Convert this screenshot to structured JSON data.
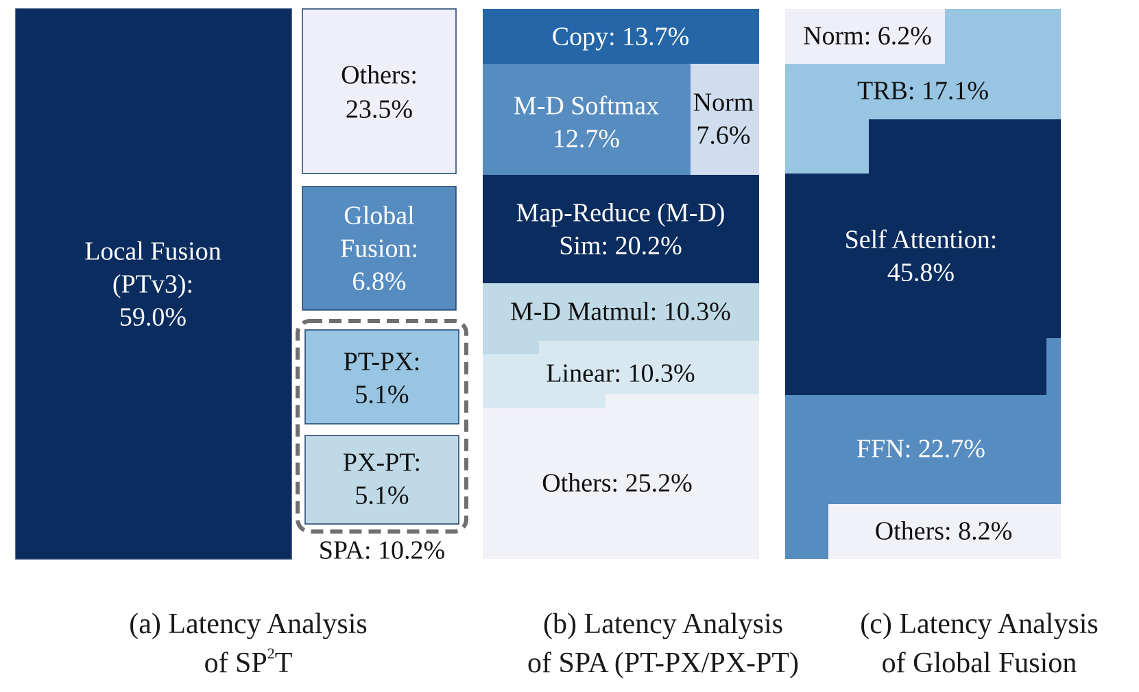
{
  "colors": {
    "c_darkest": "#0b2c5e",
    "c_dark": "#2466a8",
    "c_mid": "#568cc0",
    "c_light": "#98c5e2",
    "c_lighter": "#bfdae6",
    "c_pale": "#d7e8f1",
    "c_paler": "#cfddef",
    "c_palest": "#eeeff8",
    "c_grey": "#f1f2f7",
    "text_light": "#ffffff",
    "text_dark": "#111111",
    "border": "#6f6f6f"
  },
  "chart_data": [
    {
      "type": "treemap",
      "panel": "a",
      "caption": [
        "(a) Latency Analysis",
        "of SP",
        "2",
        "T"
      ],
      "segments": [
        {
          "name": "Local Fusion (PTv3)",
          "label": [
            "Local Fusion",
            "(PTv3):",
            "59.0%"
          ],
          "value": 59.0,
          "color": "c_darkest",
          "text_color": "text_light"
        },
        {
          "name": "Others",
          "label": [
            "Others:",
            "23.5%"
          ],
          "value": 23.5,
          "color": "c_palest",
          "text_color": "text_dark"
        },
        {
          "name": "Global Fusion",
          "label": [
            "Global",
            "Fusion:",
            "6.8%"
          ],
          "value": 6.8,
          "color": "c_mid",
          "text_color": "text_light"
        },
        {
          "name": "PT-PX",
          "label": [
            "PT-PX:",
            "5.1%"
          ],
          "value": 5.1,
          "color": "c_light",
          "text_color": "text_dark"
        },
        {
          "name": "PX-PT",
          "label": [
            "PX-PT:",
            "5.1%"
          ],
          "value": 5.1,
          "color": "c_lighter",
          "text_color": "text_dark"
        }
      ],
      "group": {
        "name": "SPA",
        "label": "SPA: 10.2%",
        "value": 10.2
      }
    },
    {
      "type": "treemap",
      "panel": "b",
      "caption": [
        "(b) Latency Analysis",
        "of SPA (PT-PX/PX-PT)"
      ],
      "segments": [
        {
          "name": "Copy",
          "label": [
            "Copy: 13.7%"
          ],
          "value": 13.7,
          "color": "c_dark",
          "text_color": "text_light"
        },
        {
          "name": "M-D Softmax",
          "label": [
            "M-D Softmax",
            "12.7%"
          ],
          "value": 12.7,
          "color": "c_mid",
          "text_color": "text_light"
        },
        {
          "name": "Norm",
          "label": [
            "Norm",
            "7.6%"
          ],
          "value": 7.6,
          "color": "c_paler",
          "text_color": "text_dark"
        },
        {
          "name": "Map-Reduce (M-D) Sim",
          "label": [
            "Map-Reduce (M-D)",
            "Sim: 20.2%"
          ],
          "value": 20.2,
          "color": "c_darkest",
          "text_color": "text_light"
        },
        {
          "name": "M-D Matmul",
          "label": [
            "M-D Matmul: 10.3%"
          ],
          "value": 10.3,
          "color": "c_lighter",
          "text_color": "text_dark"
        },
        {
          "name": "Linear",
          "label": [
            "Linear: 10.3%"
          ],
          "value": 10.3,
          "color": "c_pale",
          "text_color": "text_dark"
        },
        {
          "name": "Others",
          "label": [
            "Others: 25.2%"
          ],
          "value": 25.2,
          "color": "c_grey",
          "text_color": "text_dark"
        }
      ]
    },
    {
      "type": "treemap",
      "panel": "c",
      "caption": [
        "(c) Latency Analysis",
        "of Global Fusion"
      ],
      "segments": [
        {
          "name": "Norm",
          "label": [
            "Norm: 6.2%"
          ],
          "value": 6.2,
          "color": "c_palest",
          "text_color": "text_dark"
        },
        {
          "name": "TRB",
          "label": [
            "TRB: 17.1%"
          ],
          "value": 17.1,
          "color": "c_light",
          "text_color": "text_dark"
        },
        {
          "name": "Self Attention",
          "label": [
            "Self Attention:",
            "45.8%"
          ],
          "value": 45.8,
          "color": "c_darkest",
          "text_color": "text_light"
        },
        {
          "name": "FFN",
          "label": [
            "FFN: 22.7%"
          ],
          "value": 22.7,
          "color": "c_mid",
          "text_color": "text_light"
        },
        {
          "name": "Others",
          "label": [
            "Others: 8.2%"
          ],
          "value": 8.2,
          "color": "c_grey",
          "text_color": "text_dark"
        }
      ]
    }
  ]
}
